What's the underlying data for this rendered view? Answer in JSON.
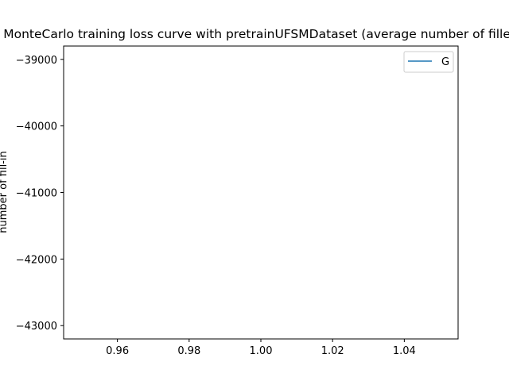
{
  "chart_data": {
    "type": "line",
    "title": "MonteCarlo training loss curve with pretrainUFSMDataset (average number of filled",
    "xlabel": "",
    "ylabel": "number of fill-in",
    "xlim": [
      0.945,
      1.055
    ],
    "ylim": [
      -43200,
      -38800
    ],
    "xticks": [
      0.96,
      0.98,
      1.0,
      1.02,
      1.04
    ],
    "xtick_labels": [
      "0.96",
      "0.98",
      "1.00",
      "1.02",
      "1.04"
    ],
    "yticks": [
      -39000,
      -40000,
      -41000,
      -42000,
      -43000
    ],
    "ytick_labels": [
      "−39000",
      "−40000",
      "−41000",
      "−42000",
      "−43000"
    ],
    "series": [
      {
        "name": "G",
        "color": "#1f77b4",
        "x": [],
        "y": []
      }
    ],
    "legend_position": "top-right",
    "grid": false
  }
}
